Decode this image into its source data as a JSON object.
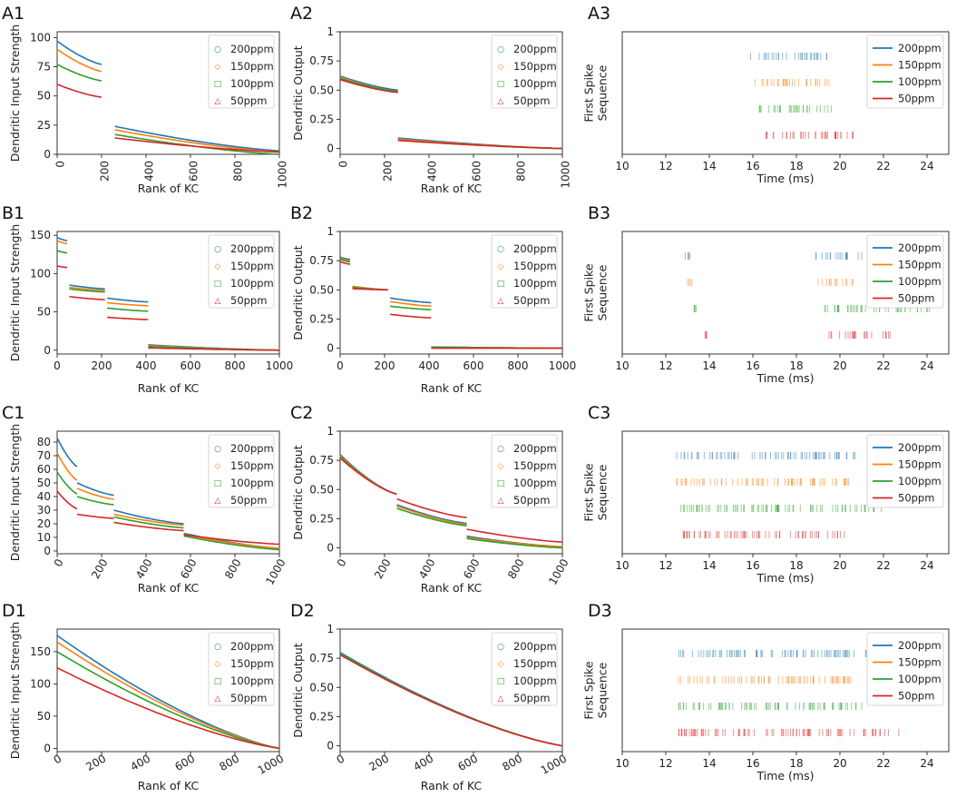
{
  "colors": {
    "200ppm": "#1f77b4",
    "150ppm": "#ff7f0e",
    "100ppm": "#2ca02c",
    "50ppm": "#d62728"
  },
  "series_names": [
    "200ppm",
    "150ppm",
    "100ppm",
    "50ppm"
  ],
  "chart_data": [
    {
      "id": "A1",
      "type": "line",
      "xlabel": "Rank of KC",
      "ylabel": "Dendritic Input Strength",
      "xlim": [
        0,
        1000
      ],
      "ylim": [
        0,
        105
      ],
      "xticks": [
        0,
        200,
        400,
        600,
        800,
        1000
      ],
      "yticks": [
        0,
        25,
        50,
        75,
        100
      ],
      "xtick_rotation": -90,
      "legend_markers": true,
      "segments": [
        {
          "x": [
            0,
            200
          ],
          "y": {
            "200ppm": [
              97,
              77
            ],
            "150ppm": [
              90,
              71
            ],
            "100ppm": [
              77,
              63
            ],
            "50ppm": [
              60,
              49
            ]
          }
        },
        {
          "x": [
            260,
            1000
          ],
          "y": {
            "200ppm": [
              24,
              3
            ],
            "150ppm": [
              21,
              2
            ],
            "100ppm": [
              17,
              0
            ],
            "50ppm": [
              14,
              2
            ]
          }
        }
      ]
    },
    {
      "id": "A2",
      "type": "line",
      "xlabel": "Rank of KC",
      "ylabel": "Dendritic Output",
      "xlim": [
        0,
        1000
      ],
      "ylim": [
        -0.05,
        1.0
      ],
      "xticks": [
        0,
        200,
        400,
        600,
        800,
        1000
      ],
      "yticks": [
        0.0,
        0.25,
        0.5,
        0.75,
        1.0
      ],
      "xtick_rotation": -90,
      "legend_markers": true,
      "segments": [
        {
          "x": [
            0,
            260
          ],
          "y": {
            "200ppm": [
              0.62,
              0.5
            ],
            "150ppm": [
              0.61,
              0.49
            ],
            "100ppm": [
              0.6,
              0.49
            ],
            "50ppm": [
              0.59,
              0.48
            ]
          }
        },
        {
          "x": [
            260,
            1000
          ],
          "y": {
            "200ppm": [
              0.09,
              0.0
            ],
            "150ppm": [
              0.08,
              0.0
            ],
            "100ppm": [
              0.07,
              0.0
            ],
            "50ppm": [
              0.07,
              0.0
            ]
          }
        }
      ]
    },
    {
      "id": "A3",
      "type": "raster",
      "xlabel": "Time (ms)",
      "ylabel": "First Spike\nSequence",
      "xlim": [
        10,
        25
      ],
      "xticks": [
        10,
        12,
        14,
        16,
        18,
        20,
        22,
        24
      ],
      "rows": {
        "200ppm": [
          15.9,
          19.4
        ],
        "150ppm": [
          16.1,
          19.5
        ],
        "100ppm": [
          16.3,
          19.6
        ],
        "50ppm": [
          16.6,
          20.6
        ]
      }
    },
    {
      "id": "B1",
      "type": "line",
      "xlabel": "Rank of KC",
      "ylabel": "Dendritic Input Strength",
      "xlim": [
        0,
        1000
      ],
      "ylim": [
        -5,
        155
      ],
      "xticks": [
        0,
        200,
        400,
        600,
        800,
        1000
      ],
      "yticks": [
        0,
        50,
        100,
        150
      ],
      "xtick_rotation": 0,
      "legend_markers": true,
      "segments": [
        {
          "x": [
            0,
            45
          ],
          "y": {
            "200ppm": [
              147,
              143
            ],
            "150ppm": [
              143,
              139
            ],
            "100ppm": [
              130,
              127
            ],
            "50ppm": [
              110,
              108
            ]
          }
        },
        {
          "x": [
            55,
            215
          ],
          "y": {
            "200ppm": [
              85,
              80
            ],
            "150ppm": [
              82,
              78
            ],
            "100ppm": [
              80,
              76
            ],
            "50ppm": [
              70,
              66
            ]
          }
        },
        {
          "x": [
            225,
            410
          ],
          "y": {
            "200ppm": [
              68,
              63
            ],
            "150ppm": [
              62,
              58
            ],
            "100ppm": [
              55,
              51
            ],
            "50ppm": [
              43,
              40
            ]
          }
        },
        {
          "x": [
            410,
            1000
          ],
          "y": {
            "200ppm": [
              7,
              0
            ],
            "150ppm": [
              6,
              0
            ],
            "100ppm": [
              5,
              0
            ],
            "50ppm": [
              3,
              0
            ]
          }
        }
      ]
    },
    {
      "id": "B2",
      "type": "line",
      "xlabel": "Rank of KC",
      "ylabel": "Dendritic Output",
      "xlim": [
        0,
        1000
      ],
      "ylim": [
        -0.05,
        1.0
      ],
      "xticks": [
        0,
        200,
        400,
        600,
        800,
        1000
      ],
      "yticks": [
        0.0,
        0.25,
        0.5,
        0.75,
        1.0
      ],
      "xtick_rotation": 0,
      "legend_markers": true,
      "segments": [
        {
          "x": [
            0,
            45
          ],
          "y": {
            "200ppm": [
              0.78,
              0.76
            ],
            "150ppm": [
              0.77,
              0.75
            ],
            "100ppm": [
              0.76,
              0.74
            ],
            "50ppm": [
              0.74,
              0.72
            ]
          }
        },
        {
          "x": [
            55,
            215
          ],
          "y": {
            "200ppm": [
              0.53,
              0.5
            ],
            "150ppm": [
              0.53,
              0.5
            ],
            "100ppm": [
              0.52,
              0.5
            ],
            "50ppm": [
              0.51,
              0.5
            ]
          }
        },
        {
          "x": [
            225,
            410
          ],
          "y": {
            "200ppm": [
              0.43,
              0.39
            ],
            "150ppm": [
              0.4,
              0.36
            ],
            "100ppm": [
              0.36,
              0.33
            ],
            "50ppm": [
              0.29,
              0.26
            ]
          }
        },
        {
          "x": [
            410,
            1000
          ],
          "y": {
            "200ppm": [
              0.01,
              0.0
            ],
            "150ppm": [
              0.01,
              0.0
            ],
            "100ppm": [
              0.01,
              0.0
            ],
            "50ppm": [
              0.0,
              0.0
            ]
          }
        }
      ]
    },
    {
      "id": "B3",
      "type": "raster",
      "xlabel": "Time (ms)",
      "ylabel": "First Spike\nSequence",
      "xlim": [
        10,
        25
      ],
      "xticks": [
        10,
        12,
        14,
        16,
        18,
        20,
        22,
        24
      ],
      "rows": {
        "200ppm": [
          [
            12.9,
            13.1
          ],
          [
            18.9,
            21.0
          ]
        ],
        "150ppm": [
          [
            13.0,
            13.2
          ],
          [
            19.0,
            20.6
          ]
        ],
        "100ppm": [
          [
            13.3,
            13.4
          ],
          [
            19.3,
            24.1
          ]
        ],
        "50ppm": [
          [
            13.8,
            13.9
          ],
          [
            19.5,
            22.3
          ]
        ]
      }
    },
    {
      "id": "C1",
      "type": "line",
      "xlabel": "Rank of KC",
      "ylabel": "Dendritic Input Strength",
      "xlim": [
        0,
        1000
      ],
      "ylim": [
        -2,
        88
      ],
      "xticks": [
        0,
        200,
        400,
        600,
        800,
        1000
      ],
      "yticks": [
        0,
        10,
        20,
        30,
        40,
        50,
        60,
        70,
        80
      ],
      "xtick_rotation": -60,
      "legend_markers": true,
      "segments": [
        {
          "x": [
            0,
            90
          ],
          "y": {
            "200ppm": [
              83,
              62
            ],
            "150ppm": [
              72,
              52
            ],
            "100ppm": [
              58,
              42
            ],
            "50ppm": [
              44,
              31
            ]
          }
        },
        {
          "x": [
            90,
            255
          ],
          "y": {
            "200ppm": [
              50,
              41
            ],
            "150ppm": [
              46,
              38
            ],
            "100ppm": [
              40,
              34
            ],
            "50ppm": [
              27,
              24
            ]
          }
        },
        {
          "x": [
            255,
            570
          ],
          "y": {
            "200ppm": [
              30,
              20
            ],
            "150ppm": [
              27,
              19
            ],
            "100ppm": [
              25,
              17
            ],
            "50ppm": [
              21,
              15
            ]
          }
        },
        {
          "x": [
            570,
            1000
          ],
          "y": {
            "200ppm": [
              13,
              2
            ],
            "150ppm": [
              12,
              2
            ],
            "100ppm": [
              11,
              1
            ],
            "50ppm": [
              12,
              5
            ]
          }
        }
      ]
    },
    {
      "id": "C2",
      "type": "line",
      "xlabel": "Rank of KC",
      "ylabel": "Dendritic Output",
      "xlim": [
        0,
        1000
      ],
      "ylim": [
        -0.05,
        1.0
      ],
      "xticks": [
        0,
        200,
        400,
        600,
        800,
        1000
      ],
      "yticks": [
        0.0,
        0.25,
        0.5,
        0.75,
        1.0
      ],
      "xtick_rotation": -60,
      "legend_markers": true,
      "segments": [
        {
          "x": [
            0,
            255
          ],
          "y": {
            "200ppm": [
              0.8,
              0.46
            ],
            "150ppm": [
              0.79,
              0.46
            ],
            "100ppm": [
              0.78,
              0.46
            ],
            "50ppm": [
              0.77,
              0.46
            ]
          }
        },
        {
          "x": [
            255,
            570
          ],
          "y": {
            "200ppm": [
              0.37,
              0.21
            ],
            "150ppm": [
              0.36,
              0.2
            ],
            "100ppm": [
              0.34,
              0.19
            ],
            "50ppm": [
              0.42,
              0.26
            ]
          }
        },
        {
          "x": [
            570,
            1000
          ],
          "y": {
            "200ppm": [
              0.1,
              0.01
            ],
            "150ppm": [
              0.09,
              0.01
            ],
            "100ppm": [
              0.08,
              0.0
            ],
            "50ppm": [
              0.16,
              0.05
            ]
          }
        }
      ]
    },
    {
      "id": "C3",
      "type": "raster",
      "xlabel": "Time (ms)",
      "ylabel": "First Spike\nSequence",
      "xlim": [
        10,
        25
      ],
      "xticks": [
        10,
        12,
        14,
        16,
        18,
        20,
        22,
        24
      ],
      "rows": {
        "200ppm": [
          12.5,
          20.7
        ],
        "150ppm": [
          12.5,
          20.4
        ],
        "100ppm": [
          12.7,
          21.9
        ],
        "50ppm": [
          12.8,
          20.2
        ]
      }
    },
    {
      "id": "D1",
      "type": "line",
      "xlabel": "Rank of KC",
      "ylabel": "Dendritic Input Strength",
      "xlim": [
        0,
        1000
      ],
      "ylim": [
        -5,
        185
      ],
      "xticks": [
        0,
        200,
        400,
        600,
        800,
        1000
      ],
      "yticks": [
        0,
        50,
        100,
        150
      ],
      "xtick_rotation": -30,
      "legend_markers": true,
      "segments": [
        {
          "x": [
            0,
            1000
          ],
          "y": {
            "200ppm": [
              175,
              0
            ],
            "150ppm": [
              165,
              0
            ],
            "100ppm": [
              150,
              0
            ],
            "50ppm": [
              125,
              0
            ]
          }
        }
      ]
    },
    {
      "id": "D2",
      "type": "line",
      "xlabel": "Rank of KC",
      "ylabel": "Dendritic Output",
      "xlim": [
        0,
        1000
      ],
      "ylim": [
        -0.05,
        1.0
      ],
      "xticks": [
        0,
        200,
        400,
        600,
        800,
        1000
      ],
      "yticks": [
        0.0,
        0.25,
        0.5,
        0.75,
        1.0
      ],
      "xtick_rotation": -30,
      "legend_markers": true,
      "segments": [
        {
          "x": [
            0,
            1000
          ],
          "y": {
            "200ppm": [
              0.8,
              0.0
            ],
            "150ppm": [
              0.79,
              0.0
            ],
            "100ppm": [
              0.79,
              0.0
            ],
            "50ppm": [
              0.78,
              0.0
            ]
          }
        }
      ]
    },
    {
      "id": "D3",
      "type": "raster",
      "xlabel": "Time (ms)",
      "ylabel": "First Spike\nSequence",
      "xlim": [
        10,
        25
      ],
      "xticks": [
        10,
        12,
        14,
        16,
        18,
        20,
        22,
        24
      ],
      "rows": {
        "200ppm": [
          12.6,
          21.2
        ],
        "150ppm": [
          12.6,
          20.5
        ],
        "100ppm": [
          12.6,
          21.0
        ],
        "50ppm": [
          12.6,
          22.7
        ]
      }
    }
  ]
}
